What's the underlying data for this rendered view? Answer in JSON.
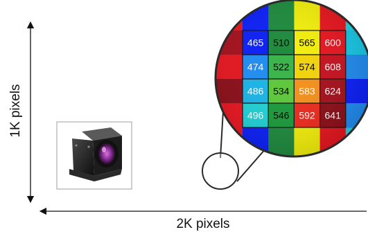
{
  "dimensions": {
    "height_label": "1K pixels",
    "width_label": "2K pixels"
  },
  "mosaic": {
    "band_colors": [
      "#1a9a3a",
      "#f5e60a",
      "#e8141e",
      "#2a3ef0",
      "#16c8e6",
      "#f07a14"
    ],
    "band_labels": [
      "",
      "",
      "",
      "",
      "",
      ""
    ]
  },
  "magnifier": {
    "grid": [
      [
        {
          "value": "465",
          "color": "#0a1ef8"
        },
        {
          "value": "510",
          "color": "#1c8a3c"
        },
        {
          "value": "565",
          "color": "#f4f00a"
        },
        {
          "value": "600",
          "color": "#e8141e"
        }
      ],
      [
        {
          "value": "474",
          "color": "#1e8cf2"
        },
        {
          "value": "522",
          "color": "#3ab44a"
        },
        {
          "value": "574",
          "color": "#f2d40a"
        },
        {
          "value": "608",
          "color": "#c8101e"
        }
      ],
      [
        {
          "value": "486",
          "color": "#18b4e8"
        },
        {
          "value": "534",
          "color": "#5cc83a"
        },
        {
          "value": "583",
          "color": "#f4901a"
        },
        {
          "value": "624",
          "color": "#a60e1a"
        }
      ],
      [
        {
          "value": "496",
          "color": "#1ed2d6"
        },
        {
          "value": "546",
          "color": "#1a9a3a"
        },
        {
          "value": "592",
          "color": "#ee2a1c"
        },
        {
          "value": "641",
          "color": "#8c0c16"
        }
      ]
    ]
  },
  "camera_photo": {
    "icon": "camera-icon"
  }
}
